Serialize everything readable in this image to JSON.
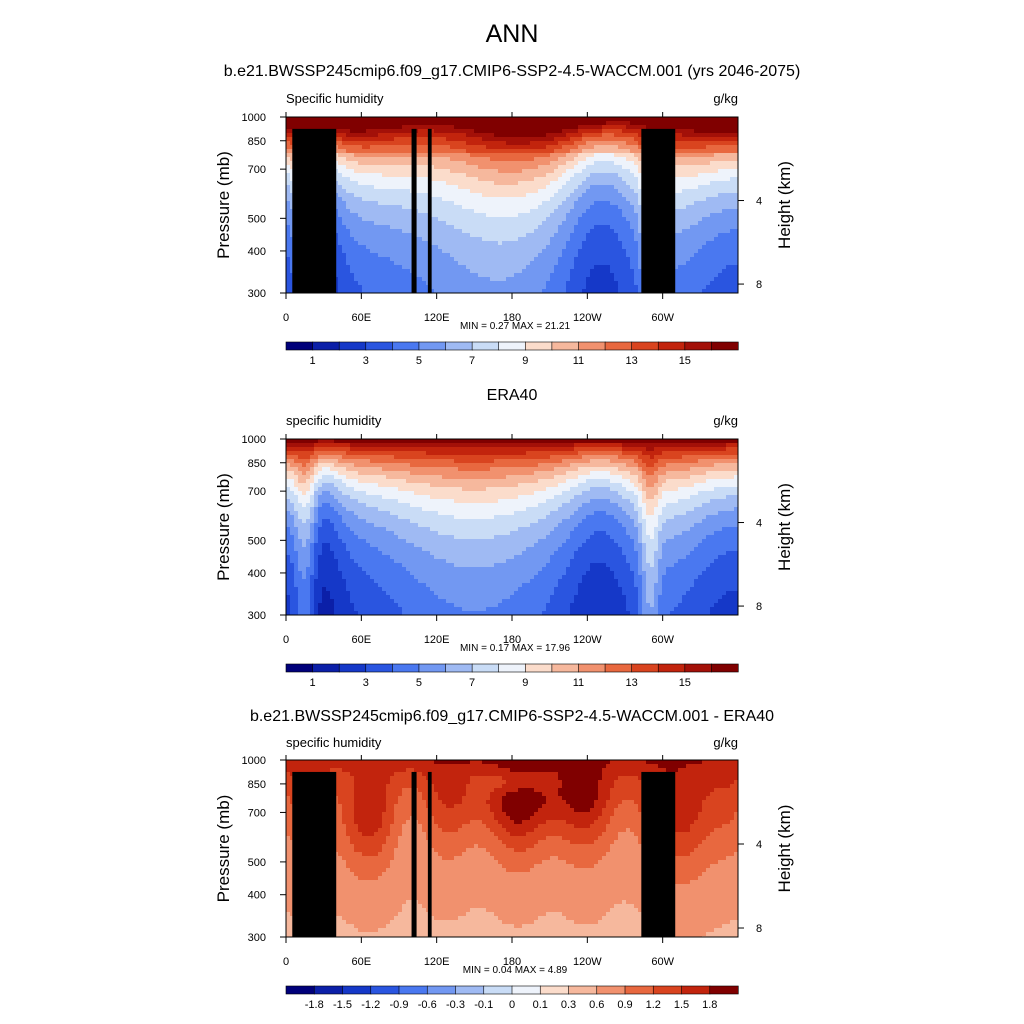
{
  "figure": {
    "title": "ANN",
    "subtitle": "b.e21.BWSSP245cmip6.f09_g17.CMIP6-SSP2-4.5-WACCM.001 (yrs 2046-2075)"
  },
  "chart_data": [
    {
      "type": "heatmap",
      "panel_title": "",
      "left_label": "Specific humidity",
      "right_label": "g/kg",
      "ylabel": "Pressure (mb)",
      "ylabel_right": "Height (km)",
      "xticks": [
        "0",
        "60E",
        "120E",
        "180",
        "120W",
        "60W"
      ],
      "xtick_values": [
        0,
        60,
        120,
        180,
        240,
        300
      ],
      "xlim": [
        0,
        360
      ],
      "yticks": [
        "300",
        "400",
        "500",
        "700",
        "850",
        "1000"
      ],
      "ytick_values": [
        300,
        400,
        500,
        700,
        850,
        1000
      ],
      "ylim": [
        1000,
        300
      ],
      "yticks_right": [
        "8",
        "4"
      ],
      "ytick_right_values": [
        8,
        4
      ],
      "stats": "MIN =   0.27  MAX =  21.21",
      "min": 0.27,
      "max": 21.21,
      "field": "model",
      "colorbar": {
        "labels": [
          "1",
          "3",
          "5",
          "7",
          "9",
          "11",
          "13",
          "15"
        ],
        "levels": [
          0,
          1,
          2,
          3,
          4,
          5,
          6,
          7,
          8,
          9,
          10,
          11,
          12,
          13,
          14,
          15,
          16
        ],
        "colors": [
          "#00007a",
          "#0b1fa8",
          "#1538c8",
          "#2a55e0",
          "#4a78f0",
          "#7298f2",
          "#9fbaf3",
          "#c9dcf6",
          "#eef3fb",
          "#fbdccb",
          "#f6b89d",
          "#f1916e",
          "#e8683f",
          "#d9441f",
          "#c2240d",
          "#a31008",
          "#800000"
        ]
      },
      "masks": [
        {
          "lon": [
            5,
            40
          ],
          "p_top": 922
        },
        {
          "lon": [
            24,
            30
          ],
          "p_top": 870
        },
        {
          "lon": [
            100,
            104
          ],
          "p_top": 922
        },
        {
          "lon": [
            113,
            116
          ],
          "p_top": 922
        },
        {
          "lon": [
            283,
            310
          ],
          "p_top": 922
        }
      ]
    },
    {
      "type": "heatmap",
      "panel_title": "ERA40",
      "left_label": "specific humidity",
      "right_label": "g/kg",
      "ylabel": "Pressure (mb)",
      "ylabel_right": "Height (km)",
      "xticks": [
        "0",
        "60E",
        "120E",
        "180",
        "120W",
        "60W"
      ],
      "xtick_values": [
        0,
        60,
        120,
        180,
        240,
        300
      ],
      "xlim": [
        0,
        360
      ],
      "yticks": [
        "300",
        "400",
        "500",
        "700",
        "850",
        "1000"
      ],
      "ytick_values": [
        300,
        400,
        500,
        700,
        850,
        1000
      ],
      "ylim": [
        1000,
        300
      ],
      "yticks_right": [
        "8",
        "4"
      ],
      "ytick_right_values": [
        8,
        4
      ],
      "stats": "MIN =   0.17  MAX =  17.96",
      "min": 0.17,
      "max": 17.96,
      "field": "obs",
      "colorbar": {
        "labels": [
          "1",
          "3",
          "5",
          "7",
          "9",
          "11",
          "13",
          "15"
        ],
        "levels": [
          0,
          1,
          2,
          3,
          4,
          5,
          6,
          7,
          8,
          9,
          10,
          11,
          12,
          13,
          14,
          15,
          16
        ],
        "colors": [
          "#00007a",
          "#0b1fa8",
          "#1538c8",
          "#2a55e0",
          "#4a78f0",
          "#7298f2",
          "#9fbaf3",
          "#c9dcf6",
          "#eef3fb",
          "#fbdccb",
          "#f6b89d",
          "#f1916e",
          "#e8683f",
          "#d9441f",
          "#c2240d",
          "#a31008",
          "#800000"
        ]
      },
      "masks": []
    },
    {
      "type": "heatmap",
      "panel_title": "b.e21.BWSSP245cmip6.f09_g17.CMIP6-SSP2-4.5-WACCM.001 - ERA40",
      "left_label": "specific humidity",
      "right_label": "g/kg",
      "ylabel": "Pressure (mb)",
      "ylabel_right": "Height (km)",
      "xticks": [
        "0",
        "60E",
        "120E",
        "180",
        "120W",
        "60W"
      ],
      "xtick_values": [
        0,
        60,
        120,
        180,
        240,
        300
      ],
      "xlim": [
        0,
        360
      ],
      "yticks": [
        "300",
        "400",
        "500",
        "700",
        "850",
        "1000"
      ],
      "ytick_values": [
        300,
        400,
        500,
        700,
        850,
        1000
      ],
      "ylim": [
        1000,
        300
      ],
      "yticks_right": [
        "8",
        "4"
      ],
      "ytick_right_values": [
        8,
        4
      ],
      "stats": "MIN =   0.04  MAX =   4.89",
      "min": 0.04,
      "max": 4.89,
      "field": "diff",
      "colorbar": {
        "labels": [
          "-1.8",
          "-1.5",
          "-1.2",
          "-0.9",
          "-0.6",
          "-0.3",
          "-0.1",
          "0",
          "0.1",
          "0.3",
          "0.6",
          "0.9",
          "1.2",
          "1.5",
          "1.8"
        ],
        "levels": [
          -2.1,
          -1.8,
          -1.5,
          -1.2,
          -0.9,
          -0.6,
          -0.3,
          -0.1,
          0,
          0.1,
          0.3,
          0.6,
          0.9,
          1.2,
          1.5,
          1.8
        ],
        "colors": [
          "#00007a",
          "#0b1fa8",
          "#1538c8",
          "#2a55e0",
          "#4a78f0",
          "#7298f2",
          "#9fbaf3",
          "#c9dcf6",
          "#eef3fb",
          "#fbdccb",
          "#f6b89d",
          "#f1916e",
          "#e8683f",
          "#d9441f",
          "#c2240d",
          "#800000"
        ]
      },
      "masks": [
        {
          "lon": [
            5,
            40
          ],
          "p_top": 922
        },
        {
          "lon": [
            24,
            30
          ],
          "p_top": 870
        },
        {
          "lon": [
            100,
            104
          ],
          "p_top": 922
        },
        {
          "lon": [
            113,
            116
          ],
          "p_top": 922
        },
        {
          "lon": [
            283,
            310
          ],
          "p_top": 922
        }
      ]
    }
  ]
}
